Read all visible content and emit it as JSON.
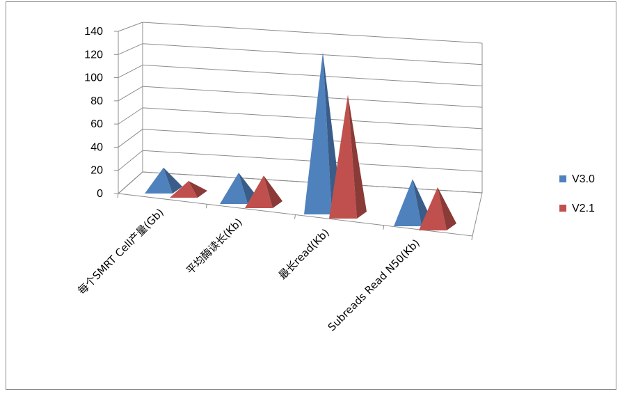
{
  "chart_data": {
    "type": "bar",
    "subtype": "3d-pyramid",
    "categories": [
      "每个SMRT Cell产量(Gb)",
      "平均酶读长(Kb)",
      "最长read(Kb)",
      "Subreads Read N50(Kb)"
    ],
    "series": [
      {
        "name": "V3.0",
        "values": [
          17,
          21,
          120,
          33
        ],
        "color": "#4f81bd"
      },
      {
        "name": "V2.1",
        "values": [
          10,
          22,
          91,
          30
        ],
        "color": "#c0504d"
      }
    ],
    "yticks": [
      "0",
      "20",
      "40",
      "60",
      "80",
      "100",
      "120",
      "140"
    ],
    "ylim": [
      0,
      140
    ],
    "grid": true,
    "legend_position": "right"
  }
}
